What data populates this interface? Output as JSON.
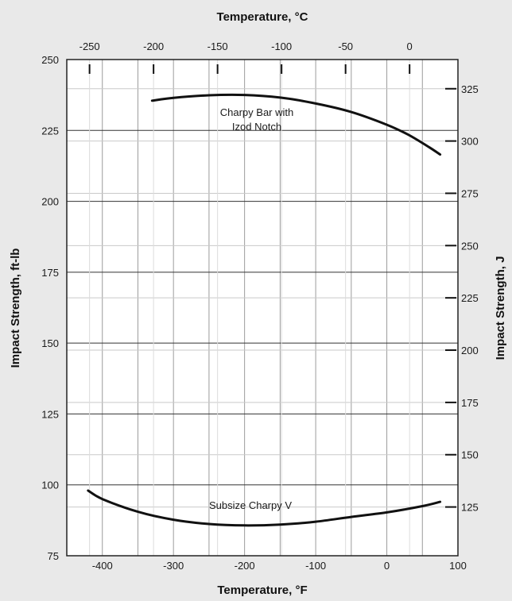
{
  "chart_data": {
    "type": "line",
    "title": "",
    "xlabel": "Temperature, °F",
    "x2label": "Temperature, °C",
    "ylabel": "Impact Strength, ft-lb",
    "y2label": "Impact Strength, J",
    "xlim": [
      -450,
      100
    ],
    "ylim": [
      75,
      250
    ],
    "xticks": [
      -400,
      -300,
      -200,
      -100,
      0,
      100
    ],
    "yticks": [
      75,
      100,
      125,
      150,
      175,
      200,
      225,
      250
    ],
    "x2ticks": [
      -250,
      -200,
      -150,
      -100,
      -50,
      0
    ],
    "y2ticks": [
      125,
      150,
      175,
      200,
      225,
      250,
      275,
      300,
      325
    ],
    "grid": true,
    "series": [
      {
        "name": "Charpy Bar with Izod Notch",
        "x": [
          -330,
          -300,
          -250,
          -200,
          -150,
          -100,
          -50,
          0,
          30,
          60,
          75
        ],
        "y": [
          235.5,
          236.5,
          237.4,
          237.5,
          236.6,
          234.5,
          231.5,
          227,
          223.5,
          219,
          216.5
        ]
      },
      {
        "name": "Subsize Charpy V",
        "x": [
          -420,
          -400,
          -350,
          -300,
          -250,
          -200,
          -150,
          -100,
          -50,
          0,
          50,
          75
        ],
        "y": [
          98,
          95,
          90.5,
          87.7,
          86.2,
          85.7,
          86,
          87,
          88.7,
          90.3,
          92.5,
          94
        ]
      }
    ]
  }
}
